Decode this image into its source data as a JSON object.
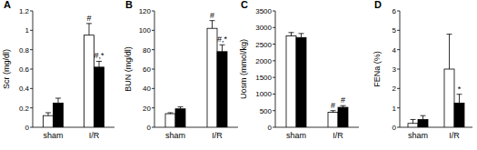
{
  "chart_data": [
    {
      "type": "bar",
      "title": "A",
      "y_label": "Scr (mg/dl)",
      "categories": [
        "sham",
        "I/R"
      ],
      "ylim": [
        0,
        1.2
      ],
      "yticks": [
        0,
        0.2,
        0.4,
        0.6,
        0.8,
        1,
        1.2
      ],
      "series": [
        {
          "color": "#ffffff",
          "values": [
            0.12,
            0.95
          ],
          "errors": [
            0.03,
            0.12
          ],
          "annotations": [
            null,
            "#"
          ]
        },
        {
          "color": "#000000",
          "values": [
            0.25,
            0.62
          ],
          "errors": [
            0.05,
            0.06
          ],
          "annotations": [
            null,
            "#,*"
          ]
        }
      ]
    },
    {
      "type": "bar",
      "title": "B",
      "y_label": "BUN (mg/dl)",
      "categories": [
        "sham",
        "I/R"
      ],
      "ylim": [
        0,
        120
      ],
      "yticks": [
        0,
        20,
        40,
        60,
        80,
        100,
        120
      ],
      "series": [
        {
          "color": "#ffffff",
          "values": [
            14,
            102
          ],
          "errors": [
            1,
            8
          ],
          "annotations": [
            null,
            "#"
          ]
        },
        {
          "color": "#000000",
          "values": [
            19,
            78
          ],
          "errors": [
            2,
            7
          ],
          "annotations": [
            null,
            "#,*"
          ]
        }
      ]
    },
    {
      "type": "bar",
      "title": "C",
      "y_label": "Uosm (mmol/kg)",
      "categories": [
        "sham",
        "I/R"
      ],
      "ylim": [
        0,
        3500
      ],
      "yticks": [
        0,
        500,
        1000,
        1500,
        2000,
        2500,
        3000,
        3500
      ],
      "series": [
        {
          "color": "#ffffff",
          "values": [
            2750,
            450
          ],
          "errors": [
            100,
            50
          ],
          "annotations": [
            null,
            "#"
          ]
        },
        {
          "color": "#000000",
          "values": [
            2700,
            600
          ],
          "errors": [
            120,
            50
          ],
          "annotations": [
            null,
            "#"
          ]
        }
      ]
    },
    {
      "type": "bar",
      "title": "D",
      "y_label": "FENa (%)",
      "categories": [
        "sham",
        "I/R"
      ],
      "ylim": [
        0,
        6
      ],
      "yticks": [
        0,
        1,
        2,
        3,
        4,
        5,
        6
      ],
      "series": [
        {
          "color": "#ffffff",
          "values": [
            0.2,
            3.0
          ],
          "errors": [
            0.2,
            1.8
          ],
          "annotations": [
            null,
            null
          ]
        },
        {
          "color": "#000000",
          "values": [
            0.4,
            1.25
          ],
          "errors": [
            0.2,
            0.45
          ],
          "annotations": [
            null,
            "*"
          ]
        }
      ]
    }
  ]
}
